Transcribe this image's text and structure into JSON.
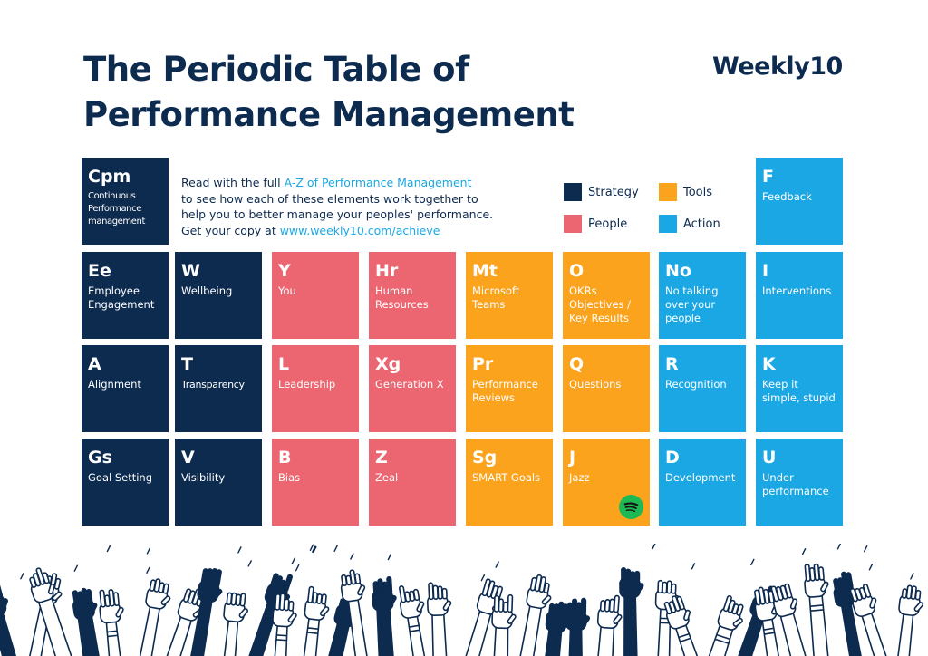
{
  "title_line1": "The Periodic Table of",
  "title_line2": "Performance Management",
  "logo": "Weekly10",
  "intro": {
    "t1": "Read with the full ",
    "link1": "A-Z of Performance Management",
    "t2": "to see how each of these elements work together to",
    "t3": "help you to better manage your peoples' performance.",
    "t4": "Get your copy at ",
    "link2": "www.weekly10.com/achieve"
  },
  "legend": [
    {
      "label": "Strategy",
      "color": "#0d2a4f"
    },
    {
      "label": "Tools",
      "color": "#fba31c"
    },
    {
      "label": "People",
      "color": "#ec6671"
    },
    {
      "label": "Action",
      "color": "#1aa7e4"
    }
  ],
  "elements": [
    {
      "symbol": "Cpm",
      "name": "Continuous Performance management",
      "category": "strategy"
    },
    {
      "symbol": "F",
      "name": "Feedback",
      "category": "action"
    },
    {
      "symbol": "Ee",
      "name": "Employee Engagement",
      "category": "strategy"
    },
    {
      "symbol": "W",
      "name": "Wellbeing",
      "category": "strategy"
    },
    {
      "symbol": "Y",
      "name": "You",
      "category": "people"
    },
    {
      "symbol": "Hr",
      "name": "Human Resources",
      "category": "people"
    },
    {
      "symbol": "Mt",
      "name": "Microsoft Teams",
      "category": "tools"
    },
    {
      "symbol": "O",
      "name": "OKRs Objectives / Key Results",
      "category": "tools"
    },
    {
      "symbol": "No",
      "name": "No talking over your people",
      "category": "action"
    },
    {
      "symbol": "I",
      "name": "Interventions",
      "category": "action"
    },
    {
      "symbol": "A",
      "name": "Alignment",
      "category": "strategy"
    },
    {
      "symbol": "T",
      "name": "Transparency",
      "category": "strategy"
    },
    {
      "symbol": "L",
      "name": "Leadership",
      "category": "people"
    },
    {
      "symbol": "Xg",
      "name": "Generation X",
      "category": "people"
    },
    {
      "symbol": "Pr",
      "name": "Performance Reviews",
      "category": "tools"
    },
    {
      "symbol": "Q",
      "name": "Questions",
      "category": "tools"
    },
    {
      "symbol": "R",
      "name": "Recognition",
      "category": "action"
    },
    {
      "symbol": "K",
      "name": "Keep it simple, stupid",
      "category": "action"
    },
    {
      "symbol": "Gs",
      "name": "Goal Setting",
      "category": "strategy"
    },
    {
      "symbol": "V",
      "name": "Visibility",
      "category": "strategy"
    },
    {
      "symbol": "B",
      "name": "Bias",
      "category": "people"
    },
    {
      "symbol": "Z",
      "name": "Zeal",
      "category": "people"
    },
    {
      "symbol": "Sg",
      "name": "SMART Goals",
      "category": "tools"
    },
    {
      "symbol": "J",
      "name": "Jazz",
      "category": "tools",
      "icon": "spotify-icon"
    },
    {
      "symbol": "D",
      "name": "Development",
      "category": "action"
    },
    {
      "symbol": "U",
      "name": "Under performance",
      "category": "action"
    }
  ],
  "crowd_illustration": "cheering-hands-icon"
}
